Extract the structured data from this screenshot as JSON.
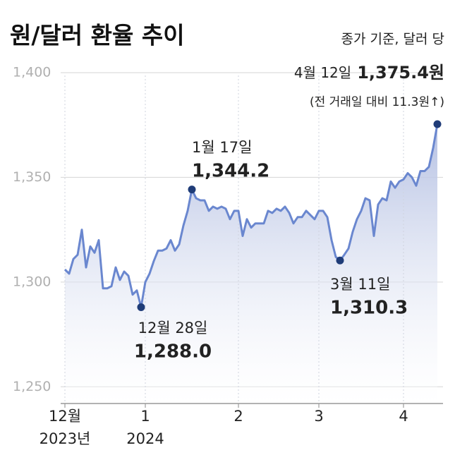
{
  "chart_data": {
    "type": "line",
    "title": "원/달러 환율 추이",
    "note": "종가 기준, 달러 당",
    "categories": [
      "12월\n2023년",
      null,
      null,
      null,
      null,
      null,
      null,
      null,
      null,
      null,
      null,
      null,
      null,
      null,
      null,
      null,
      null,
      null,
      null,
      "1\n2024",
      null,
      null,
      null,
      null,
      null,
      null,
      null,
      null,
      null,
      null,
      null,
      null,
      null,
      null,
      null,
      null,
      null,
      null,
      null,
      null,
      null,
      "2",
      null,
      null,
      null,
      null,
      null,
      null,
      null,
      null,
      null,
      null,
      null,
      null,
      null,
      null,
      null,
      null,
      null,
      null,
      "3",
      null,
      null,
      null,
      null,
      null,
      null,
      null,
      null,
      null,
      null,
      null,
      null,
      null,
      null,
      null,
      null,
      null,
      null,
      null,
      "4",
      null,
      null,
      null,
      null,
      null,
      null,
      null,
      null
    ],
    "values": [
      1306,
      1304,
      1311,
      1313,
      1325,
      1307,
      1317,
      1314,
      1320,
      1297,
      1297,
      1298,
      1307,
      1301,
      1305,
      1303,
      1294,
      1296,
      1288.0,
      1300,
      1304,
      1310,
      1315,
      1315,
      1316,
      1320,
      1315,
      1318,
      1327,
      1334,
      1344.2,
      1340,
      1339,
      1339,
      1334,
      1336,
      1335,
      1336,
      1335,
      1330,
      1334,
      1334,
      1322,
      1330,
      1326,
      1328,
      1328,
      1328,
      1334,
      1333,
      1335,
      1334,
      1336,
      1333,
      1328,
      1331,
      1331,
      1334,
      1332,
      1330,
      1334,
      1334,
      1331,
      1320,
      1312,
      1310.3,
      1313,
      1316,
      1324,
      1330,
      1334,
      1340,
      1339,
      1322,
      1337,
      1340,
      1339,
      1348,
      1345,
      1348,
      1349,
      1352,
      1350,
      1346,
      1353,
      1353,
      1355,
      1364,
      1375.4
    ],
    "color": "#6a87cf",
    "ylim": [
      1242,
      1402
    ],
    "yticks": [
      {
        "value": 1250,
        "label": "1,250"
      },
      {
        "value": 1300,
        "label": "1,300"
      },
      {
        "value": 1350,
        "label": "1,350"
      },
      {
        "value": 1400,
        "label": "1,400"
      }
    ],
    "grid": true,
    "annotations": [
      {
        "date": "12월 28일",
        "value_label": "1,288.0"
      },
      {
        "date": "1월 17일",
        "value_label": "1,344.2"
      },
      {
        "date": "3월 11일",
        "value_label": "1,310.3"
      },
      {
        "date": "4월 12일",
        "value_label": "1,375.4원",
        "change": "(전 거래일 대비 11.3원↑)"
      }
    ]
  }
}
